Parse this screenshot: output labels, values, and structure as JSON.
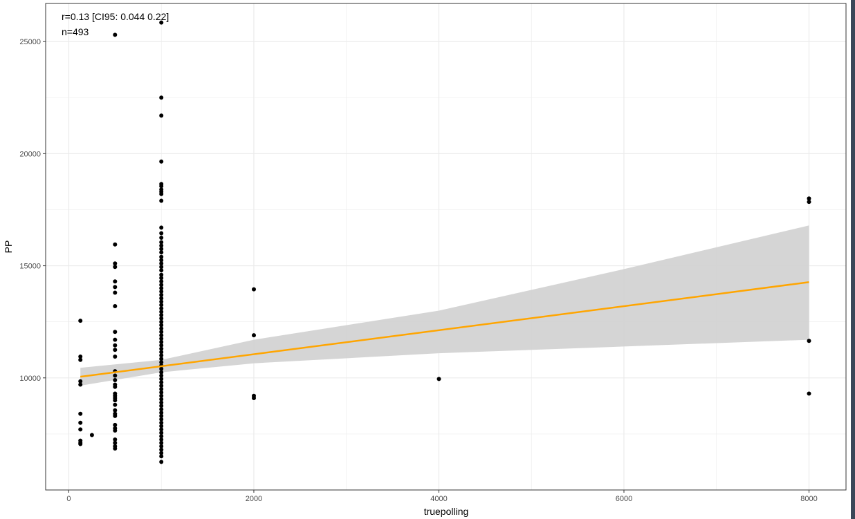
{
  "chart_data": {
    "type": "scatter",
    "title": "",
    "xlabel": "truepolling",
    "ylabel": "PP",
    "xlim": [
      -250,
      8400
    ],
    "ylim": [
      5000,
      26700
    ],
    "x_ticks": [
      0,
      2000,
      4000,
      6000,
      8000
    ],
    "x_tick_labels": [
      "0",
      "2000",
      "4000",
      "6000",
      "8000"
    ],
    "y_ticks": [
      10000,
      15000,
      20000,
      25000
    ],
    "y_tick_labels": [
      "10000",
      "15000",
      "20000",
      "25000"
    ],
    "grid": true,
    "annotations": [
      "r=0.13 [CI95: 0.044 0.22]",
      "n=493"
    ],
    "colors": {
      "points": "#000000",
      "fit_line": "#FFA500",
      "confidence_band": "#d3d3d3",
      "grid": "#ebebeb",
      "panel_border": "#333333"
    },
    "fit": {
      "x": [
        125,
        8000
      ],
      "y": [
        10050,
        14270
      ],
      "ci_upper_points": [
        [
          125,
          10450
        ],
        [
          1000,
          10800
        ],
        [
          2000,
          11700
        ],
        [
          4000,
          13000
        ],
        [
          6000,
          14850
        ],
        [
          8000,
          16800
        ]
      ],
      "ci_lower_points": [
        [
          125,
          9650
        ],
        [
          1000,
          10250
        ],
        [
          2000,
          10650
        ],
        [
          4000,
          11100
        ],
        [
          6000,
          11400
        ],
        [
          8000,
          11700
        ]
      ]
    },
    "points": [
      [
        125,
        12550
      ],
      [
        125,
        10950
      ],
      [
        125,
        10800
      ],
      [
        125,
        9850
      ],
      [
        125,
        9700
      ],
      [
        125,
        8400
      ],
      [
        125,
        8000
      ],
      [
        125,
        7700
      ],
      [
        125,
        7200
      ],
      [
        125,
        7100
      ],
      [
        125,
        7050
      ],
      [
        250,
        7450
      ],
      [
        500,
        25300
      ],
      [
        500,
        15950
      ],
      [
        500,
        15100
      ],
      [
        500,
        14950
      ],
      [
        500,
        14300
      ],
      [
        500,
        14050
      ],
      [
        500,
        13800
      ],
      [
        500,
        13200
      ],
      [
        500,
        12050
      ],
      [
        500,
        11700
      ],
      [
        500,
        11450
      ],
      [
        500,
        11250
      ],
      [
        500,
        10950
      ],
      [
        500,
        10300
      ],
      [
        500,
        10100
      ],
      [
        500,
        9900
      ],
      [
        500,
        9700
      ],
      [
        500,
        9600
      ],
      [
        500,
        9300
      ],
      [
        500,
        9200
      ],
      [
        500,
        9100
      ],
      [
        500,
        9000
      ],
      [
        500,
        8800
      ],
      [
        500,
        8550
      ],
      [
        500,
        8400
      ],
      [
        500,
        8300
      ],
      [
        500,
        7900
      ],
      [
        500,
        7750
      ],
      [
        500,
        7650
      ],
      [
        500,
        7250
      ],
      [
        500,
        7100
      ],
      [
        500,
        6950
      ],
      [
        500,
        6850
      ],
      [
        1000,
        25850
      ],
      [
        1000,
        22500
      ],
      [
        1000,
        21700
      ],
      [
        1000,
        19650
      ],
      [
        1000,
        18650
      ],
      [
        1000,
        18550
      ],
      [
        1000,
        18400
      ],
      [
        1000,
        18300
      ],
      [
        1000,
        18200
      ],
      [
        1000,
        17900
      ],
      [
        1000,
        16700
      ],
      [
        1000,
        16450
      ],
      [
        1000,
        16250
      ],
      [
        1000,
        16050
      ],
      [
        1000,
        15900
      ],
      [
        1000,
        15750
      ],
      [
        1000,
        15600
      ],
      [
        1000,
        15400
      ],
      [
        1000,
        15250
      ],
      [
        1000,
        15100
      ],
      [
        1000,
        14950
      ],
      [
        1000,
        14800
      ],
      [
        1000,
        14600
      ],
      [
        1000,
        14450
      ],
      [
        1000,
        14300
      ],
      [
        1000,
        14150
      ],
      [
        1000,
        14000
      ],
      [
        1000,
        13850
      ],
      [
        1000,
        13700
      ],
      [
        1000,
        13550
      ],
      [
        1000,
        13400
      ],
      [
        1000,
        13250
      ],
      [
        1000,
        13100
      ],
      [
        1000,
        12950
      ],
      [
        1000,
        12800
      ],
      [
        1000,
        12650
      ],
      [
        1000,
        12500
      ],
      [
        1000,
        12350
      ],
      [
        1000,
        12200
      ],
      [
        1000,
        12050
      ],
      [
        1000,
        11900
      ],
      [
        1000,
        11750
      ],
      [
        1000,
        11600
      ],
      [
        1000,
        11450
      ],
      [
        1000,
        11300
      ],
      [
        1000,
        11150
      ],
      [
        1000,
        11000
      ],
      [
        1000,
        10850
      ],
      [
        1000,
        10700
      ],
      [
        1000,
        10550
      ],
      [
        1000,
        10400
      ],
      [
        1000,
        10250
      ],
      [
        1000,
        10100
      ],
      [
        1000,
        9950
      ],
      [
        1000,
        9800
      ],
      [
        1000,
        9650
      ],
      [
        1000,
        9500
      ],
      [
        1000,
        9350
      ],
      [
        1000,
        9200
      ],
      [
        1000,
        9050
      ],
      [
        1000,
        8900
      ],
      [
        1000,
        8750
      ],
      [
        1000,
        8600
      ],
      [
        1000,
        8450
      ],
      [
        1000,
        8300
      ],
      [
        1000,
        8150
      ],
      [
        1000,
        8000
      ],
      [
        1000,
        7850
      ],
      [
        1000,
        7700
      ],
      [
        1000,
        7550
      ],
      [
        1000,
        7400
      ],
      [
        1000,
        7250
      ],
      [
        1000,
        7100
      ],
      [
        1000,
        6950
      ],
      [
        1000,
        6800
      ],
      [
        1000,
        6650
      ],
      [
        1000,
        6500
      ],
      [
        1000,
        6250
      ],
      [
        2000,
        13950
      ],
      [
        2000,
        11900
      ],
      [
        2000,
        9200
      ],
      [
        2000,
        9100
      ],
      [
        4000,
        9950
      ],
      [
        8000,
        18000
      ],
      [
        8000,
        17850
      ],
      [
        8000,
        11650
      ],
      [
        8000,
        9300
      ]
    ]
  }
}
